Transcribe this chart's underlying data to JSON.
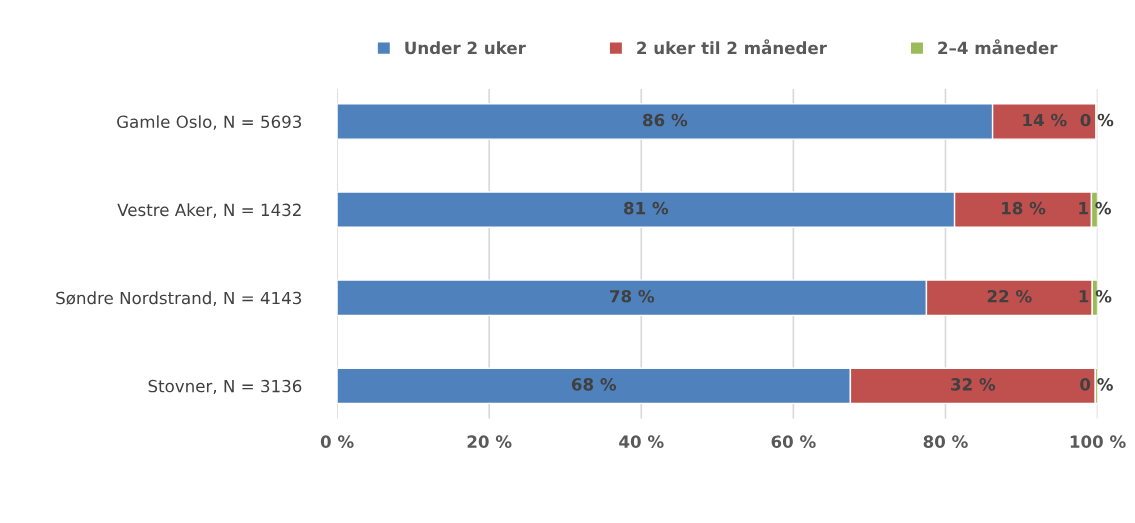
{
  "chart_data": {
    "type": "bar",
    "orientation": "horizontal",
    "stacked": true,
    "categories": [
      "Gamle Oslo, N = 5693",
      "Vestre Aker, N = 1432",
      "Søndre Nordstrand, N = 4143",
      "Stovner, N = 3136"
    ],
    "series": [
      {
        "name": "Under 2 uker",
        "color": "#4f81bd",
        "values": [
          86.2,
          81.2,
          77.5,
          67.5
        ],
        "value_labels": [
          "86 %",
          "81 %",
          "78 %",
          "68 %"
        ]
      },
      {
        "name": "2 uker til 2 måneder",
        "color": "#c0504d",
        "values": [
          13.6,
          18.0,
          21.8,
          32.2
        ],
        "value_labels": [
          "14 %",
          "18 %",
          "22 %",
          "32 %"
        ]
      },
      {
        "name": "2–4 måneder",
        "color": "#9bbb59",
        "values": [
          0.2,
          0.8,
          0.7,
          0.3
        ],
        "value_labels": [
          "0 %",
          "1 %",
          "1 %",
          "0 %"
        ]
      }
    ],
    "xlim": [
      0,
      100
    ],
    "xticks": [
      {
        "value": 0,
        "label": "0 %"
      },
      {
        "value": 20,
        "label": "20 %"
      },
      {
        "value": 40,
        "label": "40 %"
      },
      {
        "value": 60,
        "label": "60 %"
      },
      {
        "value": 80,
        "label": "80 %"
      },
      {
        "value": 100,
        "label": "100 %"
      }
    ],
    "grid": "x",
    "legend": "top"
  }
}
